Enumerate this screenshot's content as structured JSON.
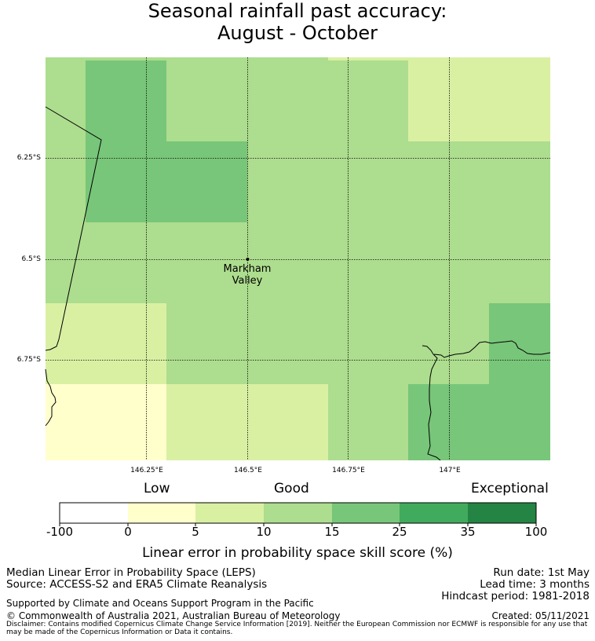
{
  "title": {
    "line1": "Seasonal rainfall past accuracy:",
    "line2": "August - October"
  },
  "map": {
    "lat_labels": [
      "6.25°S",
      "6.5°S",
      "6.75°S"
    ],
    "lon_labels": [
      "146.25°E",
      "146.5°E",
      "146.75°E",
      "147°E"
    ],
    "place": {
      "line1": "Markham",
      "line2": "Valley"
    },
    "legend_colors": {
      "c0": "#ffffff",
      "c1": "#ffffcc",
      "c2": "#d9f0a3",
      "c3": "#addd8e",
      "c4": "#78c679",
      "c5": "#41ab5d",
      "c6": "#238443"
    }
  },
  "colorbar": {
    "categories": {
      "low": "Low",
      "good": "Good",
      "exceptional": "Exceptional"
    },
    "ticks": [
      "-100",
      "0",
      "5",
      "10",
      "15",
      "25",
      "35",
      "100"
    ],
    "title": "Linear error in probability space skill score (%)"
  },
  "footer": {
    "left1": "Median Linear Error in Probability Space (LEPS)",
    "left2": "Source: ACCESS-S2 and ERA5 Climate Reanalysis",
    "supported": "Supported by Climate and Oceans Support Program in the Pacific",
    "copyright": "© Commonwealth of Australia 2021, Australian Bureau of Meteorology",
    "run_date": "Run date: 1st May",
    "lead_time": "Lead time: 3 months",
    "hindcast": "Hindcast period: 1981-2018",
    "created": "Created: 05/11/2021",
    "disclaimer": "Disclaimer: Contains modified Copernicus Climate Change Service Information [2019]. Neither the European Commission nor ECMWF is responsible for any use that may be made of the Copernicus Information or Data it contains."
  }
}
